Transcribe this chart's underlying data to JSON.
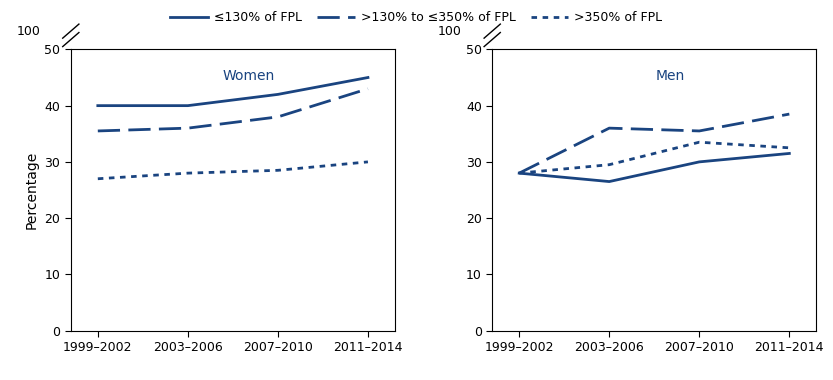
{
  "x_labels": [
    "1999–2002",
    "2003–2006",
    "2007–2010",
    "2011–2014"
  ],
  "x_values": [
    0,
    1,
    2,
    3
  ],
  "women": {
    "low": [
      40.0,
      40.0,
      42.0,
      45.0
    ],
    "mid": [
      35.5,
      36.0,
      38.0,
      43.0
    ],
    "high": [
      27.0,
      28.0,
      28.5,
      30.0
    ]
  },
  "men": {
    "low": [
      28.0,
      26.5,
      30.0,
      31.5
    ],
    "mid": [
      28.0,
      36.0,
      35.5,
      38.5
    ],
    "high": [
      28.0,
      29.5,
      33.5,
      32.5
    ]
  },
  "title_women": "Women",
  "title_men": "Men",
  "ylabel": "Percentage",
  "ylim": [
    0,
    50
  ],
  "yticks": [
    0,
    10,
    20,
    30,
    40,
    50
  ],
  "color": "#1a4480",
  "legend_labels": [
    "≤130% of FPL",
    ">130% to ≤350% of FPL",
    ">350% of FPL"
  ],
  "line_width": 2.0
}
